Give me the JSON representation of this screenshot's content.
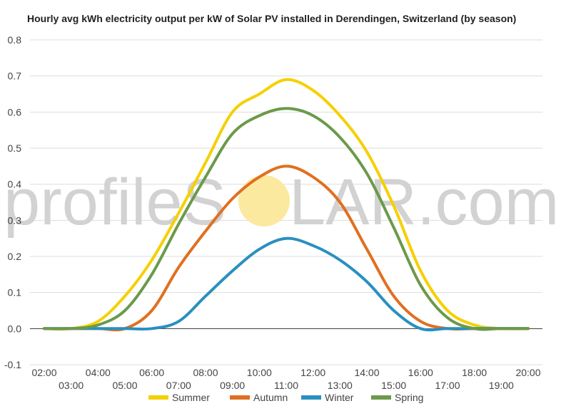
{
  "chart_data": {
    "type": "line",
    "title": "Hourly avg kWh electricity output per kW of Solar PV installed in Derendingen, Switzerland (by season)",
    "x": [
      "02:00",
      "03:00",
      "04:00",
      "05:00",
      "06:00",
      "07:00",
      "08:00",
      "09:00",
      "10:00",
      "11:00",
      "12:00",
      "13:00",
      "14:00",
      "15:00",
      "16:00",
      "17:00",
      "18:00",
      "19:00",
      "20:00"
    ],
    "ylim": [
      -0.1,
      0.8
    ],
    "yticks": [
      -0.1,
      0.0,
      0.1,
      0.2,
      0.3,
      0.4,
      0.5,
      0.6,
      0.7,
      0.8
    ],
    "grid": true,
    "legend_position": "bottom",
    "series": [
      {
        "name": "Summer",
        "color": "#f5d000",
        "values": [
          0.0,
          0.0,
          0.02,
          0.09,
          0.19,
          0.32,
          0.46,
          0.6,
          0.65,
          0.69,
          0.66,
          0.59,
          0.49,
          0.34,
          0.16,
          0.05,
          0.01,
          0.0,
          0.0
        ]
      },
      {
        "name": "Autumn",
        "color": "#e07020",
        "values": [
          0.0,
          0.0,
          0.0,
          0.0,
          0.05,
          0.17,
          0.27,
          0.36,
          0.42,
          0.45,
          0.42,
          0.35,
          0.22,
          0.09,
          0.02,
          0.0,
          0.0,
          0.0,
          0.0
        ]
      },
      {
        "name": "Winter",
        "color": "#2a8fc0",
        "values": [
          0.0,
          0.0,
          0.0,
          0.0,
          0.0,
          0.02,
          0.09,
          0.16,
          0.22,
          0.25,
          0.23,
          0.19,
          0.13,
          0.05,
          0.0,
          0.0,
          0.0,
          0.0,
          0.0
        ]
      },
      {
        "name": "Spring",
        "color": "#6b9a4a",
        "values": [
          0.0,
          0.0,
          0.01,
          0.05,
          0.15,
          0.29,
          0.42,
          0.54,
          0.59,
          0.61,
          0.59,
          0.53,
          0.43,
          0.28,
          0.12,
          0.03,
          0.0,
          0.0,
          0.0
        ]
      }
    ]
  },
  "watermark": {
    "left": "profileS",
    "right": "LAR.com",
    "sun_color": "#fbe9a0"
  }
}
